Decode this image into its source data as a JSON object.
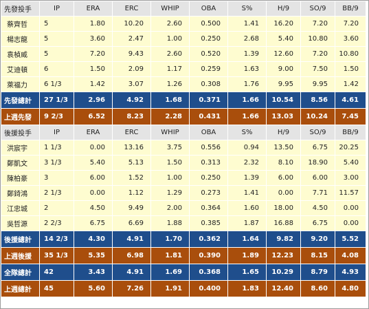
{
  "columns": [
    "IP",
    "ERA",
    "ERC",
    "WHIP",
    "OBA",
    "S%",
    "H/9",
    "SO/9",
    "BB/9"
  ],
  "starters": {
    "header": "先發投手",
    "rows": [
      [
        "蔡齊哲",
        "5",
        "1.80",
        "10.20",
        "2.60",
        "0.500",
        "1.41",
        "16.20",
        "7.20",
        "7.20"
      ],
      [
        "楊志龍",
        "5",
        "3.60",
        "2.47",
        "1.00",
        "0.250",
        "2.68",
        "5.40",
        "10.80",
        "3.60"
      ],
      [
        "袁楨威",
        "5",
        "7.20",
        "9.43",
        "2.60",
        "0.520",
        "1.39",
        "12.60",
        "7.20",
        "10.80"
      ],
      [
        "艾迪頓",
        "6",
        "1.50",
        "2.09",
        "1.17",
        "0.259",
        "1.63",
        "9.00",
        "7.50",
        "1.50"
      ],
      [
        "萊福力",
        "6 1/3",
        "1.42",
        "3.07",
        "1.26",
        "0.308",
        "1.76",
        "9.95",
        "9.95",
        "1.42"
      ]
    ],
    "total": [
      "先發總計",
      "27 1/3",
      "2.96",
      "4.92",
      "1.68",
      "0.371",
      "1.66",
      "10.54",
      "8.56",
      "4.61"
    ],
    "last_week": [
      "上週先發",
      "9 2/3",
      "6.52",
      "8.23",
      "2.28",
      "0.431",
      "1.66",
      "13.03",
      "10.24",
      "7.45"
    ]
  },
  "relievers": {
    "header": "後援投手",
    "rows": [
      [
        "洪宸宇",
        "1 1/3",
        "0.00",
        "13.16",
        "3.75",
        "0.556",
        "0.94",
        "13.50",
        "6.75",
        "20.25"
      ],
      [
        "鄭凱文",
        "3 1/3",
        "5.40",
        "5.13",
        "1.50",
        "0.313",
        "2.32",
        "8.10",
        "18.90",
        "5.40"
      ],
      [
        "陳柏豪",
        "3",
        "6.00",
        "1.52",
        "1.00",
        "0.250",
        "1.39",
        "6.00",
        "6.00",
        "3.00"
      ],
      [
        "鄭錡鴻",
        "2 1/3",
        "0.00",
        "1.12",
        "1.29",
        "0.273",
        "1.41",
        "0.00",
        "7.71",
        "11.57"
      ],
      [
        "江忠城",
        "2",
        "4.50",
        "9.49",
        "2.00",
        "0.364",
        "1.60",
        "18.00",
        "4.50",
        "0.00"
      ],
      [
        "吳哲源",
        "2 2/3",
        "6.75",
        "6.69",
        "1.88",
        "0.385",
        "1.87",
        "16.88",
        "6.75",
        "0.00"
      ]
    ],
    "total": [
      "後援總計",
      "14 2/3",
      "4.30",
      "4.91",
      "1.70",
      "0.362",
      "1.64",
      "9.82",
      "9.20",
      "5.52"
    ],
    "last_week": [
      "上週後援",
      "35 1/3",
      "5.35",
      "6.98",
      "1.81",
      "0.390",
      "1.89",
      "12.23",
      "8.15",
      "4.08"
    ]
  },
  "team_total": [
    "全隊總計",
    "42",
    "3.43",
    "4.91",
    "1.69",
    "0.368",
    "1.65",
    "10.29",
    "8.79",
    "4.93"
  ],
  "team_last_week": [
    "上週總計",
    "45",
    "5.60",
    "7.26",
    "1.91",
    "0.400",
    "1.83",
    "12.40",
    "8.60",
    "4.80"
  ],
  "colors": {
    "header_bg": "#e4e4e4",
    "row_bg": "#fefcd0",
    "total_blue": "#1f4e8c",
    "total_brown": "#a94e0c"
  }
}
